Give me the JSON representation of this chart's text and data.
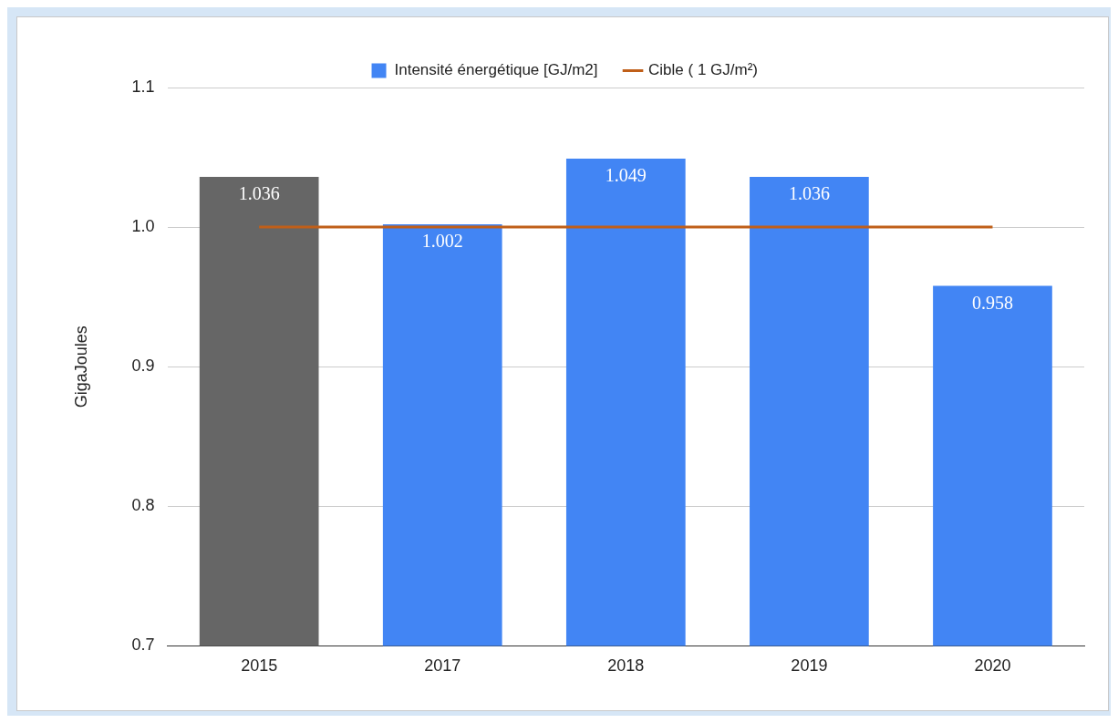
{
  "chart_data": {
    "type": "bar",
    "ylabel": "GigaJoules",
    "categories": [
      "2015",
      "2017",
      "2018",
      "2019",
      "2020"
    ],
    "series": [
      {
        "name": "Intensité énergétique [GJ/m2]",
        "color": "#4285f4",
        "colors": [
          "#666666",
          "#4285f4",
          "#4285f4",
          "#4285f4",
          "#4285f4"
        ],
        "values": [
          1.036,
          1.002,
          1.049,
          1.036,
          0.958
        ],
        "value_labels": [
          "1.036",
          "1.002",
          "1.049",
          "1.036",
          "0.958"
        ]
      },
      {
        "name": "Cible ( 1 GJ/m²)",
        "type": "line",
        "color": "#c05f19",
        "values": [
          1,
          1,
          1,
          1,
          1
        ]
      }
    ],
    "ylim": [
      0.7,
      1.1
    ],
    "yticks": [
      0.7,
      0.8,
      0.9,
      {
        "value": 1,
        "label": "1.0"
      },
      1.1
    ],
    "grid": "y",
    "legend": "top"
  }
}
